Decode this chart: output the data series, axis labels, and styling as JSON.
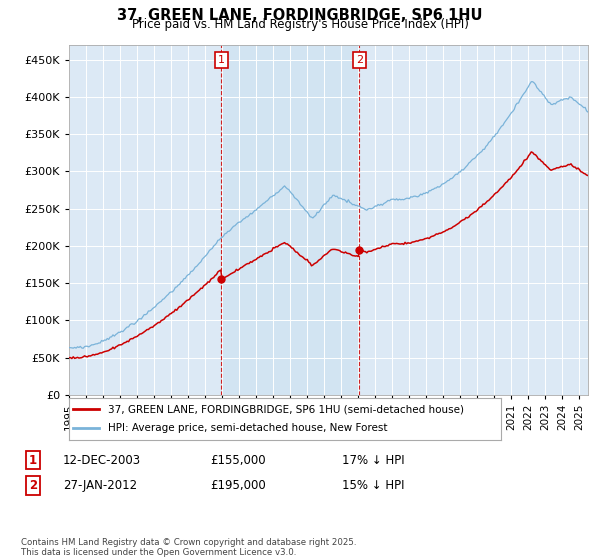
{
  "title": "37, GREEN LANE, FORDINGBRIDGE, SP6 1HU",
  "subtitle": "Price paid vs. HM Land Registry's House Price Index (HPI)",
  "hpi_label": "HPI: Average price, semi-detached house, New Forest",
  "price_label": "37, GREEN LANE, FORDINGBRIDGE, SP6 1HU (semi-detached house)",
  "annotation1": {
    "num": "1",
    "date": "12-DEC-2003",
    "price": "£155,000",
    "note": "17% ↓ HPI"
  },
  "annotation2": {
    "num": "2",
    "date": "27-JAN-2012",
    "price": "£195,000",
    "note": "15% ↓ HPI"
  },
  "footnote": "Contains HM Land Registry data © Crown copyright and database right 2025.\nThis data is licensed under the Open Government Licence v3.0.",
  "ylim": [
    0,
    470000
  ],
  "yticks": [
    0,
    50000,
    100000,
    150000,
    200000,
    250000,
    300000,
    350000,
    400000,
    450000
  ],
  "background_color": "#dce9f5",
  "hpi_color": "#7ab3d9",
  "price_color": "#cc0000",
  "vline_color": "#cc0000",
  "marker1_x": 2003.96,
  "marker2_x": 2012.07,
  "marker1_y": 155000,
  "marker2_y": 195000,
  "xmin": 1995,
  "xmax": 2025.5
}
